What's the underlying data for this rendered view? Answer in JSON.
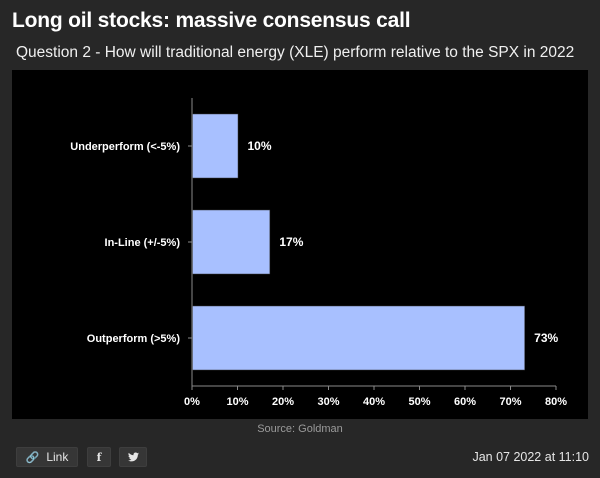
{
  "header": {
    "title": "Long oil stocks: massive consensus call",
    "subtitle": "Question 2 - How will traditional energy (XLE) perform relative to the SPX in 2022"
  },
  "chart_data": {
    "type": "bar",
    "orientation": "horizontal",
    "categories": [
      "Underperform (<-5%)",
      "In-Line (+/-5%)",
      "Outperform (>5%)"
    ],
    "values": [
      10,
      17,
      73
    ],
    "value_labels": [
      "10%",
      "17%",
      "73%"
    ],
    "xlim": [
      0,
      80
    ],
    "x_ticks": [
      "0%",
      "10%",
      "20%",
      "30%",
      "40%",
      "50%",
      "60%",
      "70%",
      "80%"
    ],
    "grid": false,
    "bar_color": "#a8c0ff",
    "background_color": "#000000"
  },
  "source": "Source: Goldman",
  "footer": {
    "link_label": "Link",
    "link_icon": "link-icon",
    "facebook_icon": "facebook-icon",
    "twitter_icon": "twitter-icon",
    "timestamp": "Jan 07 2022 at 11:10"
  }
}
